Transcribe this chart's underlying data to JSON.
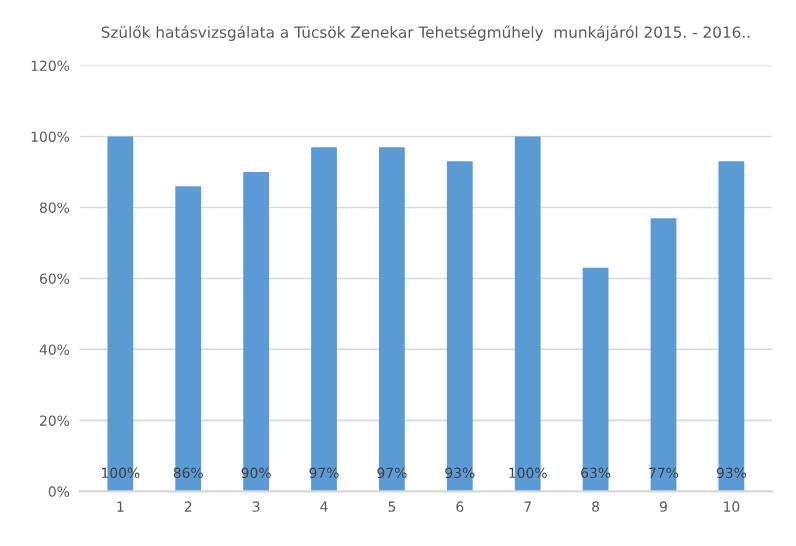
{
  "chart_data": {
    "type": "bar",
    "title": "Szülők hatásvizsgálata a Tücsök Zenekar Tehetségműhely  munkájáról 2015. - 2016..",
    "categories": [
      "1",
      "2",
      "3",
      "4",
      "5",
      "6",
      "7",
      "8",
      "9",
      "10"
    ],
    "values": [
      100,
      86,
      90,
      97,
      97,
      93,
      100,
      63,
      77,
      93
    ],
    "value_labels": [
      "100%",
      "86%",
      "90%",
      "97%",
      "97%",
      "93%",
      "100%",
      "63%",
      "77%",
      "93%"
    ],
    "color": "#5b9bd5",
    "ylim": [
      0,
      120
    ],
    "yticks": [
      {
        "value": 0,
        "label": "0%"
      },
      {
        "value": 20,
        "label": "20%"
      },
      {
        "value": 40,
        "label": "40%"
      },
      {
        "value": 60,
        "label": "60%"
      },
      {
        "value": 80,
        "label": "80%"
      },
      {
        "value": 100,
        "label": "100%"
      },
      {
        "value": 120,
        "label": "120%"
      }
    ],
    "grid": "y"
  }
}
